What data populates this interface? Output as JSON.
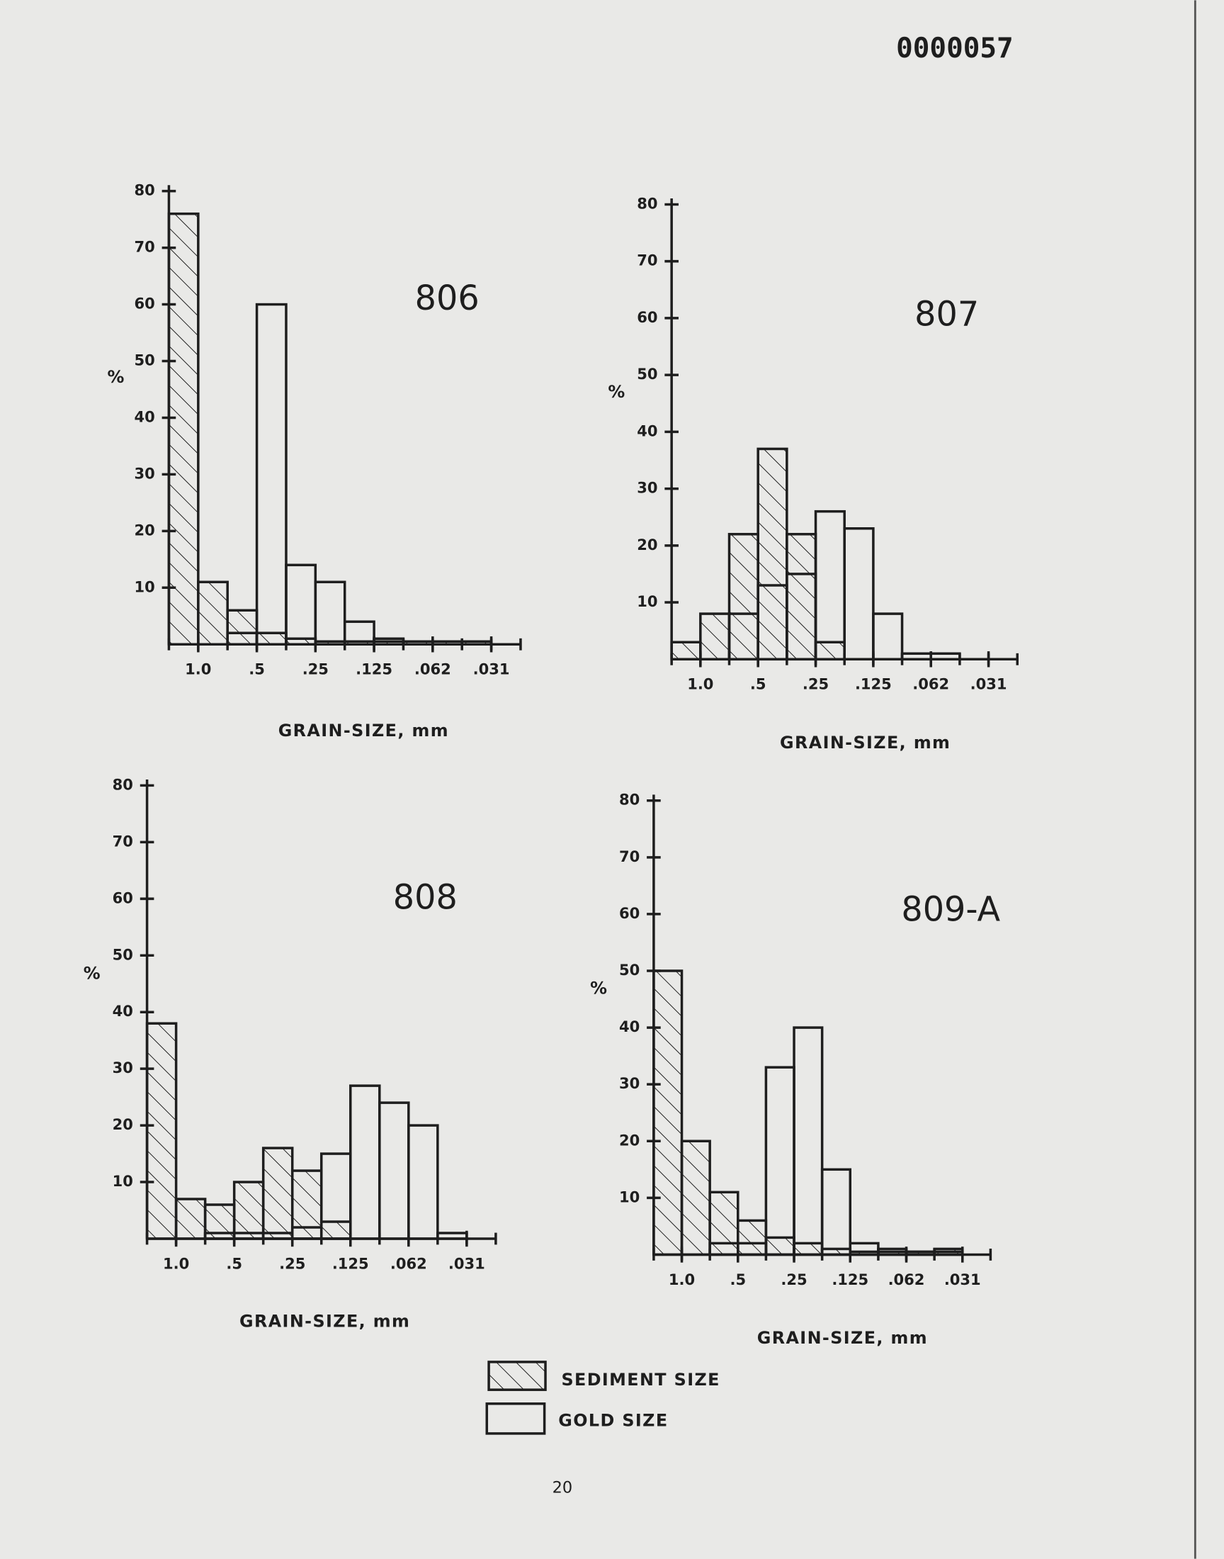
{
  "stamp": "0000057",
  "page_number": "20",
  "chart_data": [
    {
      "type": "histogram",
      "title": "806",
      "xlabel": "GRAIN-SIZE, mm",
      "ylabel": "%",
      "bins": [
        -0.5,
        0,
        0.5,
        1,
        1.5,
        2,
        2.5,
        3,
        3.5,
        4,
        4.5,
        5,
        5.5
      ],
      "xlim": [
        -0.5,
        5.5
      ],
      "xticks": [
        {
          "value": 0,
          "label": "1.0"
        },
        {
          "value": 1,
          "label": ".5"
        },
        {
          "value": 2,
          "label": ".25"
        },
        {
          "value": 3,
          "label": ".125"
        },
        {
          "value": 4,
          "label": ".062"
        },
        {
          "value": 5,
          "label": ".031"
        }
      ],
      "ylim": [
        0,
        80
      ],
      "yticks": [
        10,
        20,
        30,
        40,
        50,
        60,
        70,
        80
      ],
      "series": [
        {
          "name": "SEDIMENT SIZE",
          "color": "#1e1e1e",
          "values": [
            76,
            11,
            6,
            2,
            1,
            0.5,
            0.5,
            0.5,
            0.5,
            0.5,
            0.5,
            0
          ]
        },
        {
          "name": "GOLD SIZE",
          "color": "#1e1e1e",
          "values": [
            0,
            0,
            2,
            60,
            14,
            11,
            4,
            1,
            0.5,
            0.5,
            0.5,
            0
          ]
        }
      ]
    },
    {
      "type": "histogram",
      "title": "807",
      "xlabel": "GRAIN-SIZE, mm",
      "ylabel": "%",
      "bins": [
        -0.5,
        0,
        0.5,
        1,
        1.5,
        2,
        2.5,
        3,
        3.5,
        4,
        4.5,
        5,
        5.5
      ],
      "xlim": [
        -0.5,
        5.5
      ],
      "xticks": [
        {
          "value": 0,
          "label": "1.0"
        },
        {
          "value": 1,
          "label": ".5"
        },
        {
          "value": 2,
          "label": ".25"
        },
        {
          "value": 3,
          "label": ".125"
        },
        {
          "value": 4,
          "label": ".062"
        },
        {
          "value": 5,
          "label": ".031"
        }
      ],
      "ylim": [
        0,
        80
      ],
      "yticks": [
        10,
        20,
        30,
        40,
        50,
        60,
        70,
        80
      ],
      "series": [
        {
          "color": "#1e1e1e",
          "values": [
            3,
            8,
            22,
            37,
            22,
            3,
            0,
            0,
            0,
            0,
            0,
            0
          ]
        },
        {
          "color": "#1e1e1e",
          "values": [
            0,
            0,
            8,
            13,
            15,
            26,
            23,
            8,
            1,
            1,
            0,
            0
          ]
        }
      ]
    },
    {
      "type": "histogram",
      "title": "808",
      "xlabel": "GRAIN-SIZE, mm",
      "ylabel": "%",
      "bins": [
        -0.5,
        0,
        0.5,
        1,
        1.5,
        2,
        2.5,
        3,
        3.5,
        4,
        4.5,
        5,
        5.5
      ],
      "xlim": [
        -0.5,
        5.5
      ],
      "xticks": [
        {
          "value": 0,
          "label": "1.0"
        },
        {
          "value": 1,
          "label": ".5"
        },
        {
          "value": 2,
          "label": ".25"
        },
        {
          "value": 3,
          "label": ".125"
        },
        {
          "value": 4,
          "label": ".062"
        },
        {
          "value": 5,
          "label": ".031"
        }
      ],
      "ylim": [
        0,
        80
      ],
      "yticks": [
        10,
        20,
        30,
        40,
        50,
        60,
        70,
        80
      ],
      "series": [
        {
          "color": "#1e1e1e",
          "values": [
            38,
            7,
            6,
            10,
            16,
            12,
            3,
            0,
            0,
            0,
            0,
            0
          ]
        },
        {
          "color": "#1e1e1e",
          "values": [
            0,
            0,
            1,
            1,
            1,
            2,
            15,
            27,
            24,
            20,
            1,
            0
          ]
        }
      ]
    },
    {
      "type": "histogram",
      "title": "809-A",
      "xlabel": "GRAIN-SIZE, mm",
      "ylabel": "%",
      "bins": [
        -0.5,
        0,
        0.5,
        1,
        1.5,
        2,
        2.5,
        3,
        3.5,
        4,
        4.5,
        5,
        5.5
      ],
      "xlim": [
        -0.5,
        5.5
      ],
      "xticks": [
        {
          "value": 0,
          "label": "1.0"
        },
        {
          "value": 1,
          "label": ".5"
        },
        {
          "value": 2,
          "label": ".25"
        },
        {
          "value": 3,
          "label": ".125"
        },
        {
          "value": 4,
          "label": ".062"
        },
        {
          "value": 5,
          "label": ".031"
        }
      ],
      "ylim": [
        0,
        80
      ],
      "yticks": [
        10,
        20,
        30,
        40,
        50,
        60,
        70,
        80
      ],
      "series": [
        {
          "color": "#1e1e1e",
          "values": [
            50,
            20,
            11,
            6,
            3,
            2,
            1,
            0.5,
            0.5,
            0.5,
            1,
            0
          ]
        },
        {
          "color": "#1e1e1e",
          "values": [
            0,
            0,
            2,
            2,
            33,
            40,
            15,
            2,
            1,
            0.5,
            0.5,
            0
          ]
        }
      ]
    }
  ]
}
